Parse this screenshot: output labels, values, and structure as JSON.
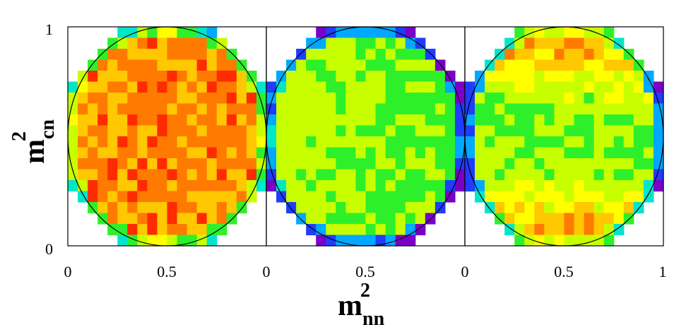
{
  "chart_data": {
    "type": "heatmap",
    "title": "",
    "xlabel": {
      "main": "m",
      "sub": "nn",
      "sup": "2"
    },
    "ylabel": {
      "main": "m",
      "sub": "cn",
      "sup": "2"
    },
    "panels": [
      {
        "x_ticks": [
          "0",
          "0.5"
        ],
        "y_ticks": [
          "0",
          "1"
        ],
        "xlim": [
          0,
          1
        ],
        "ylim": [
          0,
          1
        ],
        "grid_size": 20,
        "boundary": "circle",
        "intensity_model": {
          "base": 0.22,
          "y_term": 0.0,
          "x_term": 0.0,
          "noise": 0.1,
          "seed": 3
        },
        "description_values": {
          "typical_intensity": 0.22
        }
      },
      {
        "x_ticks": [
          "0",
          "0.5"
        ],
        "xlim": [
          0,
          1
        ],
        "ylim": [
          0,
          1
        ],
        "grid_size": 20,
        "boundary": "circle",
        "intensity_model": {
          "base": 0.52,
          "y_term": 0.0,
          "x_term": 0.1,
          "noise": 0.05,
          "seed": 7
        },
        "description_values": {
          "typical_intensity": 0.52
        }
      },
      {
        "x_ticks": [
          "0",
          "0.5",
          "1"
        ],
        "xlim": [
          0,
          1
        ],
        "ylim": [
          0,
          1
        ],
        "grid_size": 20,
        "boundary": "circle",
        "intensity_model": {
          "base": 0.56,
          "y_term": -0.4,
          "x_term": 0.0,
          "noise": 0.08,
          "seed": 11
        },
        "description_values": {
          "typical_intensity_center": 0.56,
          "typical_intensity_edges": 0.16
        }
      }
    ],
    "colormap": [
      "#7a00c8",
      "#1f3cff",
      "#00a8ff",
      "#00e6c8",
      "#2ef02a",
      "#c8ff00",
      "#ffff00",
      "#ffc800",
      "#ff7a00",
      "#ff2a00",
      "#c80000"
    ],
    "grid": false,
    "legend": "none"
  }
}
